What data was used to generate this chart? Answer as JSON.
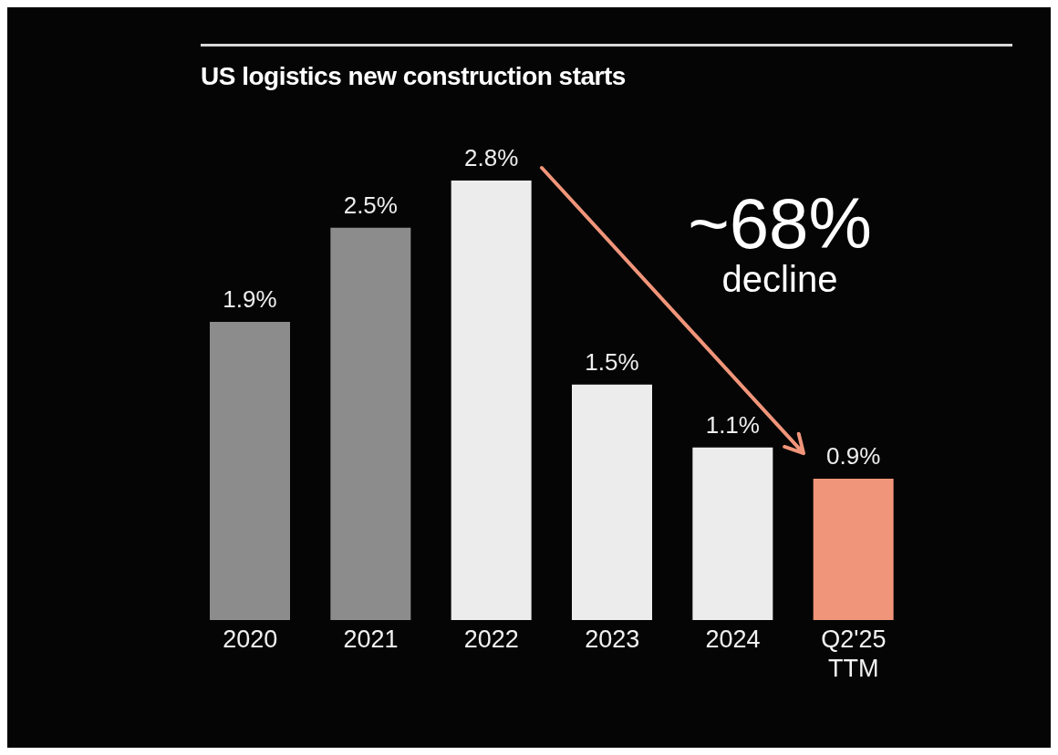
{
  "chart_data": {
    "type": "bar",
    "title": "US logistics new construction starts",
    "categories": [
      "2020",
      "2021",
      "2022",
      "2023",
      "2024",
      "Q2'25 TTM"
    ],
    "values": [
      1.9,
      2.5,
      2.8,
      1.5,
      1.1,
      0.9
    ],
    "value_labels": [
      "1.9%",
      "2.5%",
      "2.8%",
      "1.5%",
      "1.1%",
      "0.9%"
    ],
    "colors": [
      "#8c8c8c",
      "#8c8c8c",
      "#ececec",
      "#ececec",
      "#ececec",
      "#f0957a"
    ],
    "annotations": [
      "~68% decline"
    ]
  }
}
